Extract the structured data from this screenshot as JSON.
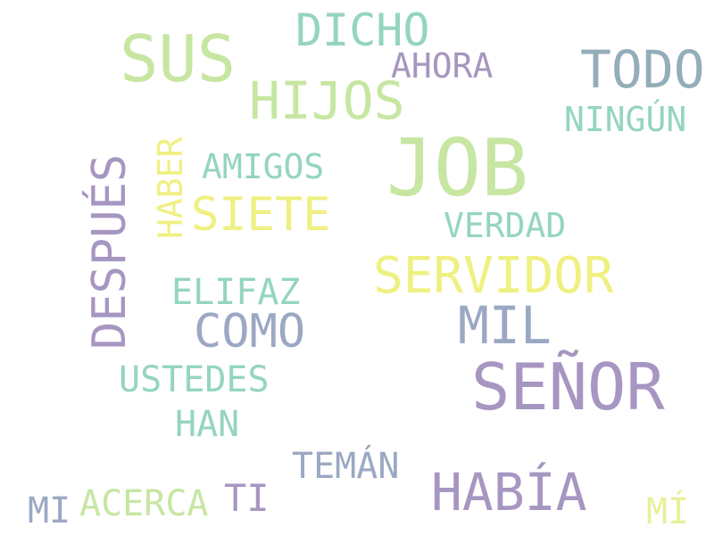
{
  "colors": {
    "background": "#ffffff",
    "green": "#c7e6a2",
    "teal": "#94d5bf",
    "blue_grey": "#93aeb9",
    "purple": "#a696c1",
    "yellow": "#eff082",
    "slate": "#9ba8c4"
  },
  "words": {
    "job": "JOB",
    "sus": "SUS",
    "senor": "SEÑOR",
    "hijos": "HIJOS",
    "todo": "TODO",
    "dicho": "DICHO",
    "ahora": "AHORA",
    "ningun": "NINGÚN",
    "amigos": "AMIGOS",
    "siete": "SIETE",
    "verdad": "VERDAD",
    "servidor": "SERVIDOR",
    "elifaz": "ELIFAZ",
    "como": "COMO",
    "mil": "MIL",
    "ustedes": "USTEDES",
    "han": "HAN",
    "teman": "TEMÁN",
    "habia": "HABÍA",
    "acerca": "ACERCA",
    "ti": "TI",
    "mi_upper": "MI",
    "mi_acc": "MÍ",
    "despues": "DESPUÉS",
    "haber": "HABER"
  }
}
